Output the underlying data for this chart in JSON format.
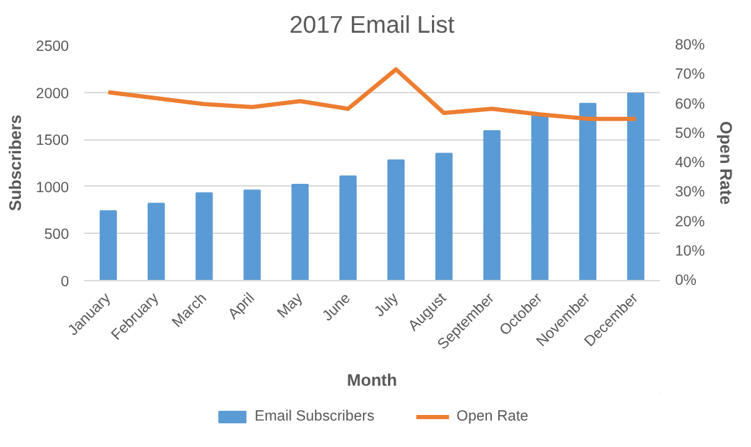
{
  "chart_data": {
    "type": "bar",
    "title": "2017 Email List",
    "xlabel": "Month",
    "ylabel": "Subscribers",
    "y2label": "Open Rate",
    "categories": [
      "January",
      "February",
      "March",
      "April",
      "May",
      "June",
      "July",
      "August",
      "September",
      "October",
      "November",
      "December"
    ],
    "series": [
      {
        "name": "Email Subscribers",
        "color": "#5b9bd5",
        "values": [
          740,
          820,
          930,
          960,
          1020,
          1110,
          1280,
          1350,
          1590,
          1760,
          1880,
          1990
        ]
      },
      {
        "name": "Open Rate",
        "type": "line",
        "axis": "y2",
        "color": "#ed7d31",
        "values": [
          64,
          62,
          60,
          59,
          61,
          58.4,
          71.8,
          57,
          58.4,
          56.5,
          55,
          55
        ]
      }
    ],
    "ylim": [
      0,
      2500
    ],
    "yticks": [
      0,
      500,
      1000,
      1500,
      2000,
      2500
    ],
    "y2lim": [
      0,
      80
    ],
    "y2ticks": [
      {
        "value": 0,
        "label": "0%"
      },
      {
        "value": 10,
        "label": "10%"
      },
      {
        "value": 20,
        "label": "20%"
      },
      {
        "value": 30,
        "label": "30%"
      },
      {
        "value": 40,
        "label": "40%"
      },
      {
        "value": 50,
        "label": "50%"
      },
      {
        "value": 60,
        "label": "60%"
      },
      {
        "value": 70,
        "label": "70%"
      },
      {
        "value": 80,
        "label": "80%"
      }
    ],
    "grid": "y",
    "legend": "bottom"
  }
}
